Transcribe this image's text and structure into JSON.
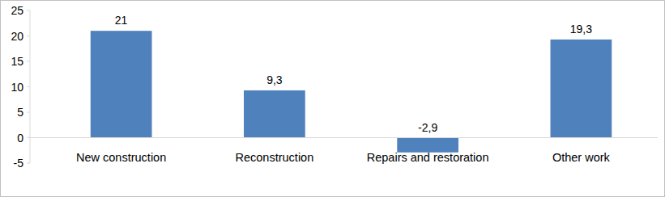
{
  "chart_data": {
    "type": "bar",
    "categories": [
      "New construction",
      "Reconstruction",
      "Repairs and restoration",
      "Other work"
    ],
    "values": [
      21,
      9.3,
      -2.9,
      19.3
    ],
    "value_labels": [
      "21",
      "9,3",
      "-2,9",
      "19,3"
    ],
    "color": "#4f81bd",
    "ylim": [
      -5,
      25
    ],
    "yticks": [
      -5,
      0,
      5,
      10,
      15,
      20,
      25
    ],
    "grid": false,
    "data_labels": true
  }
}
